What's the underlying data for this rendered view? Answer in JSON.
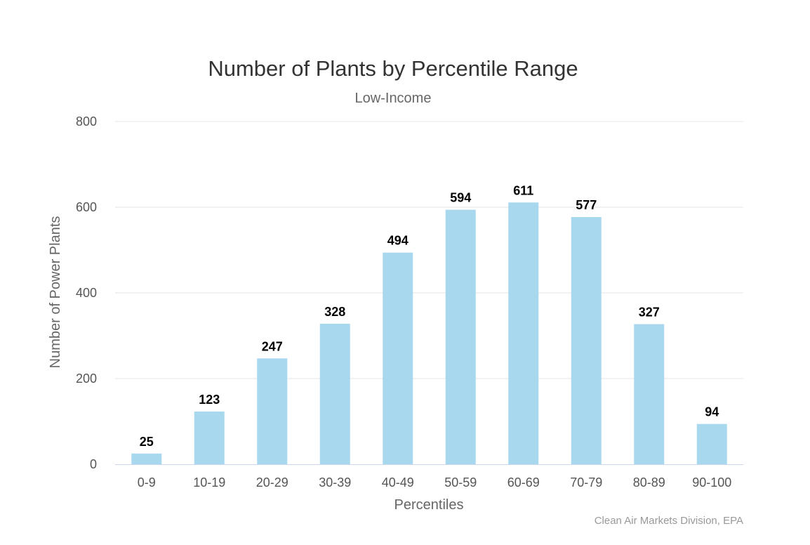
{
  "chart_data": {
    "type": "bar",
    "title": "Number of Plants by Percentile Range",
    "subtitle": "Low-Income",
    "xlabel": "Percentiles",
    "ylabel": "Number of Power Plants",
    "categories": [
      "0-9",
      "10-19",
      "20-29",
      "30-39",
      "40-49",
      "50-59",
      "60-69",
      "70-79",
      "80-89",
      "90-100"
    ],
    "values": [
      25,
      123,
      247,
      328,
      494,
      594,
      611,
      577,
      327,
      94
    ],
    "ylim": [
      0,
      800
    ],
    "yticks": [
      0,
      200,
      400,
      600,
      800
    ],
    "grid": true,
    "legend": "none",
    "bar_color": "#a8d8ee",
    "credit": "Clean Air Markets Division, EPA"
  }
}
